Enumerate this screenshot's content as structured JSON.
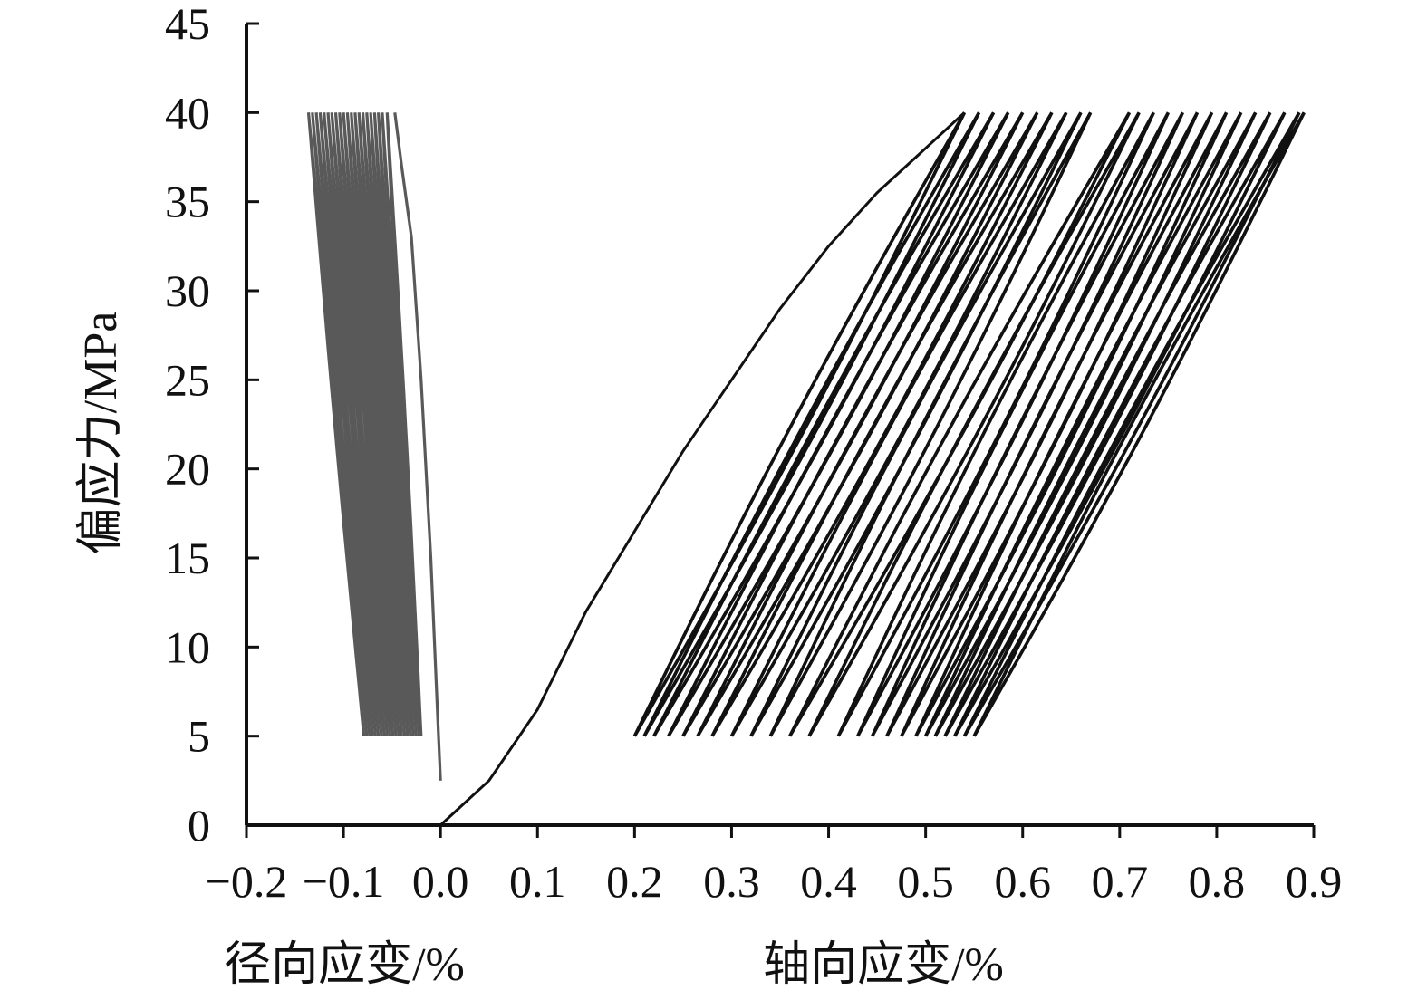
{
  "chart_data": {
    "type": "line",
    "title": "",
    "ylabel": "偏应力/MPa",
    "xlabel_radial": "径向应变/%",
    "xlabel_axial": "轴向应变/%",
    "xlim": [
      -0.2,
      0.9
    ],
    "ylim": [
      0,
      45
    ],
    "x_ticks": [
      -0.2,
      -0.1,
      0.0,
      0.1,
      0.2,
      0.3,
      0.4,
      0.5,
      0.6,
      0.7,
      0.8,
      0.9
    ],
    "x_tick_labels": [
      "−0.2",
      "−0.1",
      "0.0",
      "0.1",
      "0.2",
      "0.3",
      "0.4",
      "0.5",
      "0.6",
      "0.7",
      "0.8",
      "0.9"
    ],
    "y_ticks": [
      0,
      5,
      10,
      15,
      20,
      25,
      30,
      35,
      40,
      45
    ],
    "y_tick_labels": [
      "0",
      "5",
      "10",
      "15",
      "20",
      "25",
      "30",
      "35",
      "40",
      "45"
    ],
    "stress_min": 5,
    "stress_max": 40,
    "colors": {
      "radial": "#595959",
      "axial": "#111111",
      "axis": "#111111"
    },
    "series": [
      {
        "name": "径向应变",
        "initial_loading": [
          [
            0.0,
            2.5
          ],
          [
            -0.002,
            5
          ],
          [
            -0.01,
            15
          ],
          [
            -0.02,
            25
          ],
          [
            -0.03,
            33
          ],
          [
            -0.04,
            37
          ],
          [
            -0.047,
            40
          ]
        ],
        "cycles": [
          {
            "x_low": -0.02,
            "x_high": -0.055
          },
          {
            "x_low": -0.022,
            "x_high": -0.06
          },
          {
            "x_low": -0.025,
            "x_high": -0.064
          },
          {
            "x_low": -0.028,
            "x_high": -0.068
          },
          {
            "x_low": -0.031,
            "x_high": -0.072
          },
          {
            "x_low": -0.034,
            "x_high": -0.076
          },
          {
            "x_low": -0.037,
            "x_high": -0.08
          },
          {
            "x_low": -0.04,
            "x_high": -0.084
          },
          {
            "x_low": -0.043,
            "x_high": -0.088
          },
          {
            "x_low": -0.046,
            "x_high": -0.092
          },
          {
            "x_low": -0.049,
            "x_high": -0.096
          },
          {
            "x_low": -0.052,
            "x_high": -0.1
          },
          {
            "x_low": -0.055,
            "x_high": -0.104
          },
          {
            "x_low": -0.058,
            "x_high": -0.108
          },
          {
            "x_low": -0.061,
            "x_high": -0.112
          },
          {
            "x_low": -0.064,
            "x_high": -0.116
          },
          {
            "x_low": -0.067,
            "x_high": -0.12
          },
          {
            "x_low": -0.07,
            "x_high": -0.124
          },
          {
            "x_low": -0.073,
            "x_high": -0.128
          },
          {
            "x_low": -0.076,
            "x_high": -0.132
          },
          {
            "x_low": -0.079,
            "x_high": -0.136
          }
        ]
      },
      {
        "name": "轴向应变",
        "initial_loading": [
          [
            0.0,
            0
          ],
          [
            0.05,
            2.5
          ],
          [
            0.1,
            6.5
          ],
          [
            0.15,
            12
          ],
          [
            0.2,
            16.5
          ],
          [
            0.25,
            21
          ],
          [
            0.3,
            25
          ],
          [
            0.35,
            29
          ],
          [
            0.4,
            32.5
          ],
          [
            0.45,
            35.5
          ],
          [
            0.5,
            38
          ],
          [
            0.54,
            40
          ]
        ],
        "cycles": [
          {
            "x_low": 0.2,
            "x_high": 0.54
          },
          {
            "x_low": 0.21,
            "x_high": 0.555
          },
          {
            "x_low": 0.22,
            "x_high": 0.57
          },
          {
            "x_low": 0.235,
            "x_high": 0.585
          },
          {
            "x_low": 0.25,
            "x_high": 0.6
          },
          {
            "x_low": 0.265,
            "x_high": 0.615
          },
          {
            "x_low": 0.28,
            "x_high": 0.63
          },
          {
            "x_low": 0.3,
            "x_high": 0.645
          },
          {
            "x_low": 0.32,
            "x_high": 0.66
          },
          {
            "x_low": 0.34,
            "x_high": 0.67
          },
          {
            "x_low": 0.36,
            "x_high": 0.71
          },
          {
            "x_low": 0.38,
            "x_high": 0.72
          },
          {
            "x_low": 0.41,
            "x_high": 0.735
          },
          {
            "x_low": 0.43,
            "x_high": 0.75
          },
          {
            "x_low": 0.445,
            "x_high": 0.765
          },
          {
            "x_low": 0.46,
            "x_high": 0.78
          },
          {
            "x_low": 0.475,
            "x_high": 0.795
          },
          {
            "x_low": 0.49,
            "x_high": 0.81
          },
          {
            "x_low": 0.5,
            "x_high": 0.825
          },
          {
            "x_low": 0.51,
            "x_high": 0.84
          },
          {
            "x_low": 0.52,
            "x_high": 0.855
          },
          {
            "x_low": 0.53,
            "x_high": 0.87
          },
          {
            "x_low": 0.54,
            "x_high": 0.885
          },
          {
            "x_low": 0.55,
            "x_high": 0.89
          }
        ]
      }
    ]
  }
}
